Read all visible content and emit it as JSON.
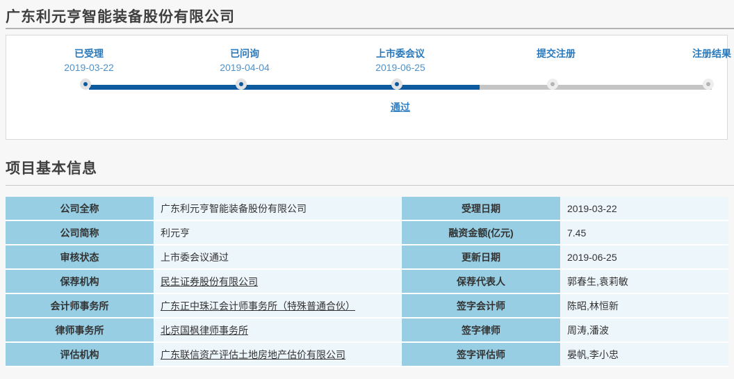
{
  "page": {
    "title": "广东利元亨智能装备股份有限公司",
    "section_title": "项目基本信息"
  },
  "colors": {
    "accent_blue": "#0d5a9e",
    "stage_label_blue": "#2979bd",
    "stage_date_blue": "#4d92cc",
    "inactive_gray": "#b5b5b5",
    "label_cell_bg": "#97cee3",
    "value_cell_bg": "#edf6fb",
    "page_bg": "#f7f7f7"
  },
  "timeline": {
    "progress_percent": 62.7,
    "stages": [
      {
        "label": "已受理",
        "date": "2019-03-22",
        "state": "done",
        "result": ""
      },
      {
        "label": "已问询",
        "date": "2019-04-04",
        "state": "done",
        "result": ""
      },
      {
        "label": "上市委会议",
        "date": "2019-06-25",
        "state": "done",
        "result": "通过"
      },
      {
        "label": "提交注册",
        "date": "",
        "state": "pending",
        "result": ""
      },
      {
        "label": "注册结果",
        "date": "",
        "state": "pending",
        "result": ""
      }
    ]
  },
  "info_table": {
    "rows": [
      {
        "left_label": "公司全称",
        "left_value": "广东利元亨智能装备股份有限公司",
        "left_link": false,
        "right_label": "受理日期",
        "right_value": "2019-03-22"
      },
      {
        "left_label": "公司简称",
        "left_value": "利元亨",
        "left_link": false,
        "right_label": "融资金额(亿元)",
        "right_value": "7.45"
      },
      {
        "left_label": "审核状态",
        "left_value": "上市委会议通过",
        "left_link": false,
        "right_label": "更新日期",
        "right_value": "2019-06-25"
      },
      {
        "left_label": "保荐机构",
        "left_value": "民生证券股份有限公司",
        "left_link": true,
        "right_label": "保荐代表人",
        "right_value": "郭春生,袁莉敏"
      },
      {
        "left_label": "会计师事务所",
        "left_value": "广东正中珠江会计师事务所（特殊普通合伙）",
        "left_link": true,
        "right_label": "签字会计师",
        "right_value": "陈昭,林恒新"
      },
      {
        "left_label": "律师事务所",
        "left_value": "北京国枫律师事务所",
        "left_link": true,
        "right_label": "签字律师",
        "right_value": "周涛,潘波"
      },
      {
        "left_label": "评估机构",
        "left_value": "广东联信资产评估土地房地产估价有限公司",
        "left_link": true,
        "right_label": "签字评估师",
        "right_value": "晏帆,李小忠"
      }
    ]
  }
}
